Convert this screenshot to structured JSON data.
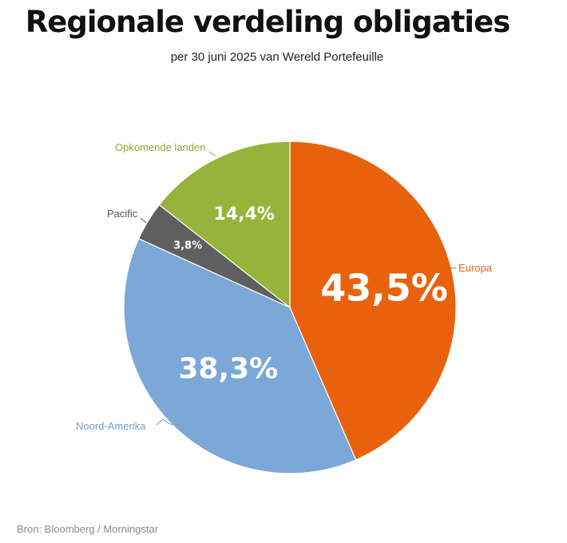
{
  "title": "Regionale verdeling obligaties",
  "subtitle": "per 30 juni 2025 van Wereld Portefeuille",
  "source": "Bron: Bloomberg / Morningstar",
  "chart_data": {
    "type": "pie",
    "title": "Regionale verdeling obligaties",
    "subtitle": "per 30 juni 2025 van Wereld Portefeuille",
    "slices": [
      {
        "label": "Europa",
        "value": 43.5,
        "value_label": "43,5%",
        "color": "#e8620e"
      },
      {
        "label": "Noord-Amerika",
        "value": 38.3,
        "value_label": "38,3%",
        "color": "#7ba8d6"
      },
      {
        "label": "Pacific",
        "value": 3.8,
        "value_label": "3,8%",
        "color": "#5f5f5f"
      },
      {
        "label": "Opkomende landen",
        "value": 14.4,
        "value_label": "14,4%",
        "color": "#97b43a"
      }
    ],
    "start_angle": "12 o'clock",
    "direction": "clockwise",
    "legend": "none (direct labels)"
  }
}
